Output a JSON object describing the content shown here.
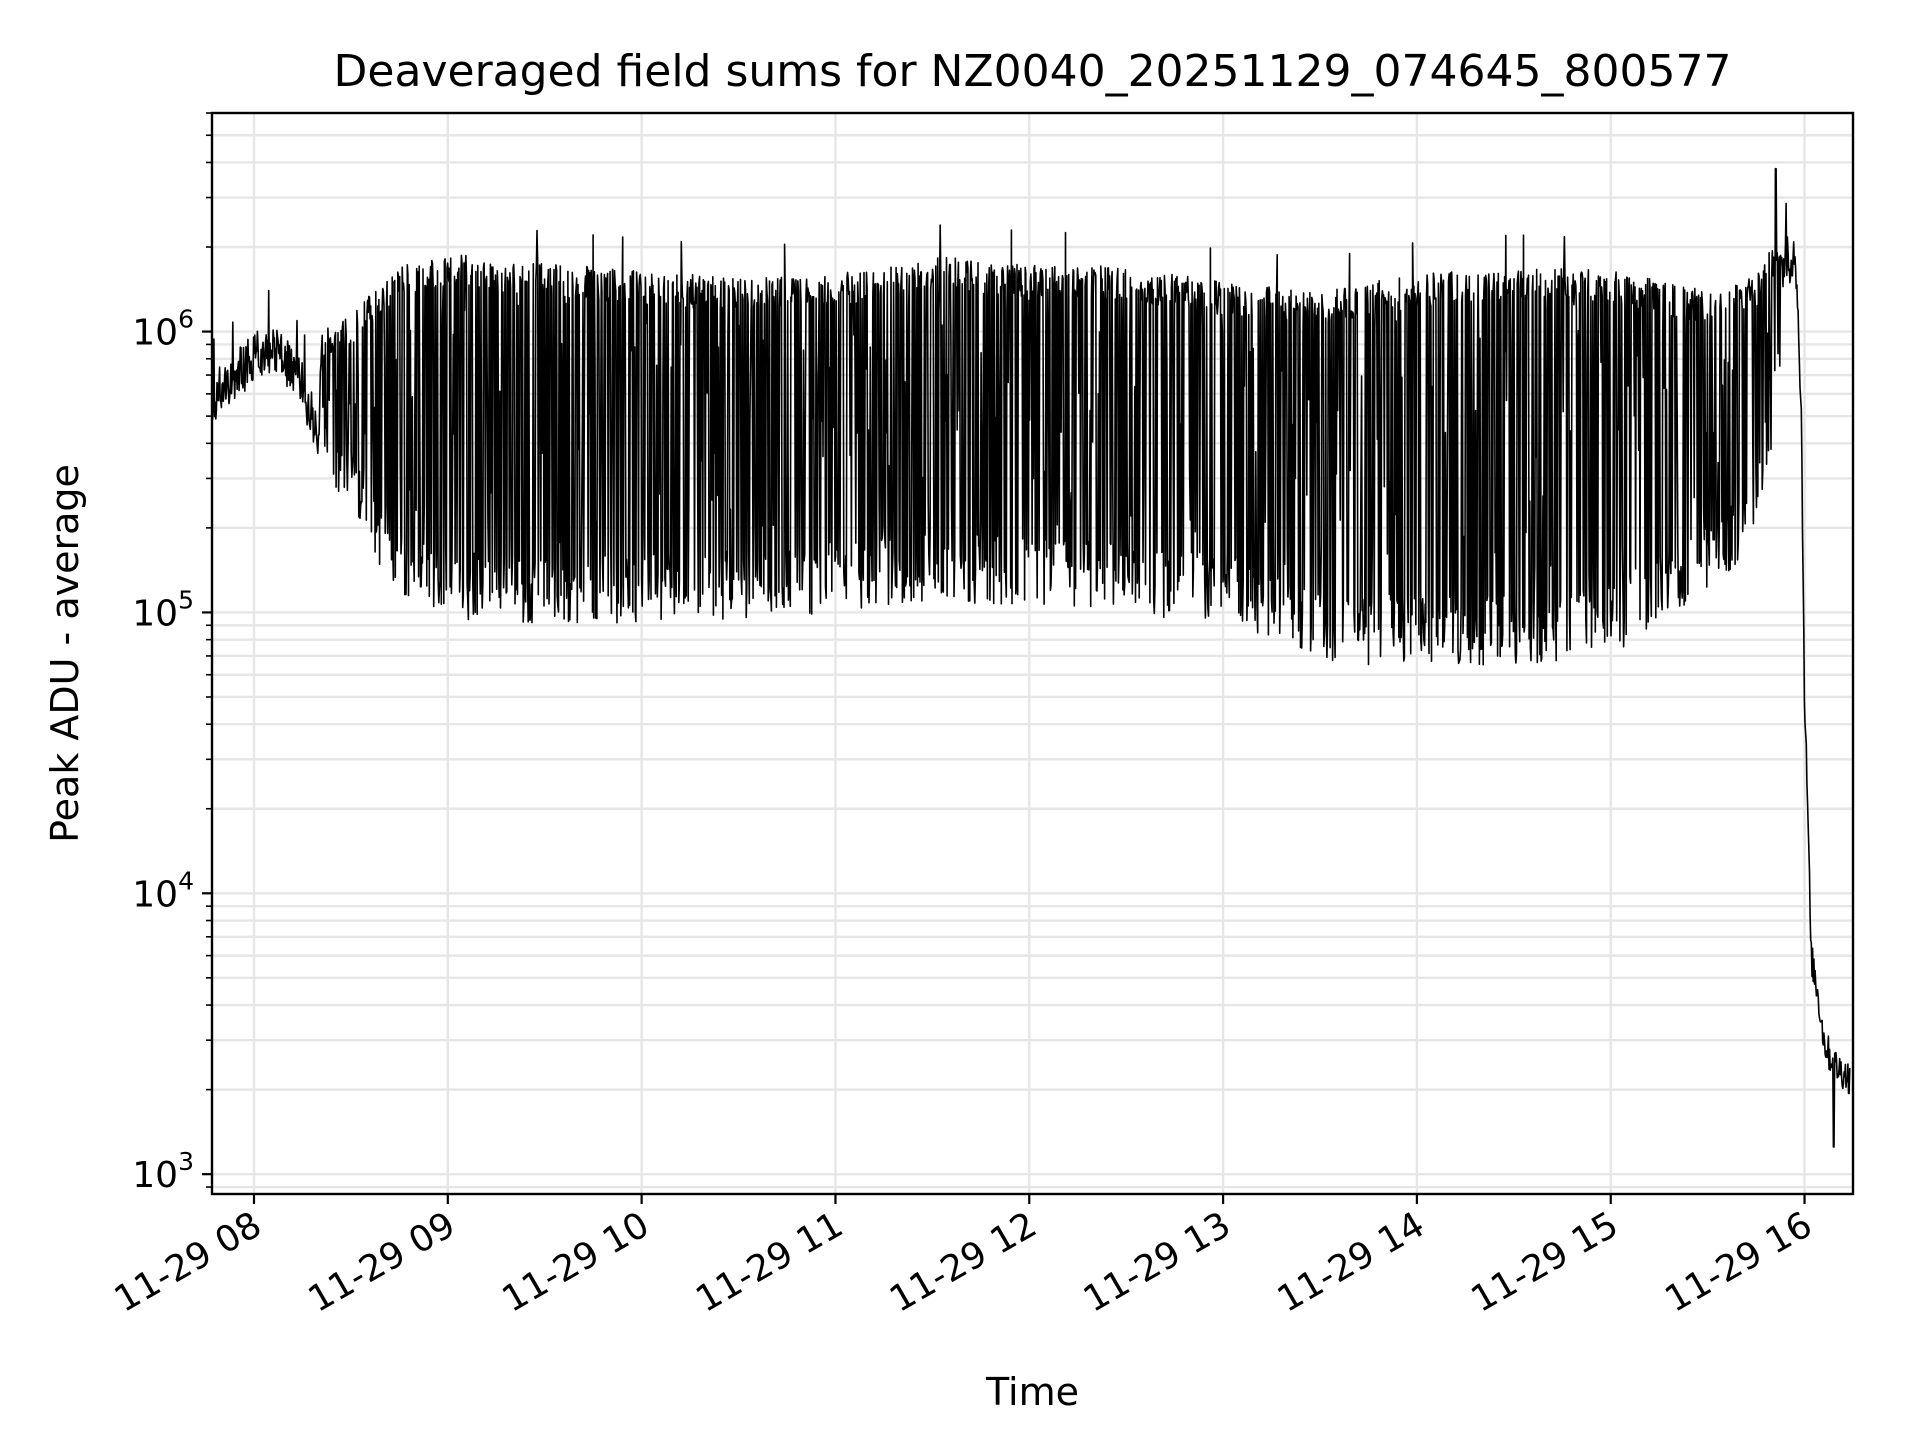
{
  "chart_data": {
    "type": "line",
    "title": "Deaveraged field sums for NZ0040_20251129_074645_800577",
    "xlabel": "Time",
    "ylabel": "Peak ADU - average",
    "y_scale": "log",
    "x_range": [
      "2025-11-29 07:47",
      "2025-11-29 16:15"
    ],
    "ylim": [
      850,
      6000000
    ],
    "grid": true,
    "legend": "none",
    "line_color": "#000000",
    "x_tick_labels": [
      "11-29 08",
      "11-29 09",
      "11-29 10",
      "11-29 11",
      "11-29 12",
      "11-29 13",
      "11-29 14",
      "11-29 15",
      "11-29 16"
    ],
    "y_ticks": [
      {
        "value": 1000,
        "base": "10",
        "exp": "3"
      },
      {
        "value": 10000,
        "base": "10",
        "exp": "4"
      },
      {
        "value": 100000,
        "base": "10",
        "exp": "5"
      },
      {
        "value": 1000000,
        "base": "10",
        "exp": "6"
      }
    ],
    "series": [
      {
        "points": [
          [
            "07:47",
            580000
          ],
          [
            "07:55",
            700000
          ],
          [
            "08:00",
            820000
          ],
          [
            "08:05",
            880000
          ],
          [
            "08:10",
            780000
          ],
          [
            "08:15",
            640000
          ],
          [
            "08:20",
            430000
          ],
          [
            "08:25",
            280000
          ],
          [
            "08:30",
            220000
          ],
          [
            "08:35",
            180000
          ],
          [
            "08:40",
            140000
          ],
          [
            "08:45",
            115000
          ],
          [
            "08:50",
            100000
          ],
          [
            "09:00",
            95000
          ],
          [
            "09:30",
            90000
          ],
          [
            "10:00",
            92000
          ],
          [
            "10:30",
            95000
          ],
          [
            "11:00",
            100000
          ],
          [
            "11:30",
            110000
          ],
          [
            "12:00",
            105000
          ],
          [
            "12:30",
            100000
          ],
          [
            "13:00",
            90000
          ],
          [
            "13:20",
            80000
          ],
          [
            "13:30",
            65000
          ],
          [
            "14:00",
            65000
          ],
          [
            "14:30",
            65000
          ],
          [
            "15:00",
            70000
          ],
          [
            "15:20",
            100000
          ],
          [
            "15:30",
            120000
          ],
          [
            "15:40",
            150000
          ],
          [
            "15:45",
            200000
          ],
          [
            "15:50",
            400000
          ],
          [
            "15:55",
            1500000
          ],
          [
            "15:57",
            2000000
          ],
          [
            "15:58",
            1200000
          ],
          [
            "15:59",
            500000
          ],
          [
            "16:00",
            50000
          ],
          [
            "16:01",
            20000
          ],
          [
            "16:02",
            6000
          ],
          [
            "16:04",
            4500
          ],
          [
            "16:06",
            3000
          ],
          [
            "16:08",
            2600
          ],
          [
            "16:10",
            2400
          ],
          [
            "16:12",
            2300
          ],
          [
            "16:14",
            2200
          ]
        ],
        "upper_envelope": [
          [
            "07:47",
            750000
          ],
          [
            "08:00",
            1000000
          ],
          [
            "08:15",
            900000
          ],
          [
            "08:30",
            1200000
          ],
          [
            "08:45",
            1750000
          ],
          [
            "09:00",
            1900000
          ],
          [
            "09:30",
            1750000
          ],
          [
            "10:00",
            1650000
          ],
          [
            "10:30",
            1550000
          ],
          [
            "11:00",
            1600000
          ],
          [
            "11:30",
            1850000
          ],
          [
            "12:00",
            1750000
          ],
          [
            "12:30",
            1700000
          ],
          [
            "13:00",
            1500000
          ],
          [
            "13:30",
            1400000
          ],
          [
            "14:00",
            1600000
          ],
          [
            "14:30",
            1700000
          ],
          [
            "15:00",
            1650000
          ],
          [
            "15:30",
            1400000
          ],
          [
            "15:45",
            1600000
          ],
          [
            "15:52",
            2200000
          ],
          [
            "15:55",
            2200000
          ]
        ],
        "min_value": 1250,
        "max_value": 3800000
      }
    ]
  }
}
